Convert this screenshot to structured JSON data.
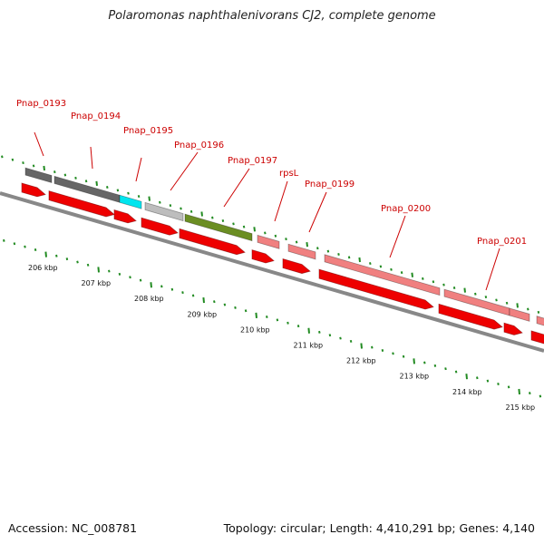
{
  "title": "Polaromonas naphthalenivorans CJ2, complete genome",
  "accession": "Accession: NC_008781",
  "topology": "Topology: circular; Length: 4,410,291 bp; Genes: 4,140",
  "colors": {
    "backbone": "#888888",
    "cds": "#ee0000",
    "tick": "#228b22",
    "label": "#cc0000"
  },
  "genes": [
    {
      "id": "g1",
      "label": "Pnap_0193",
      "color": "#666666"
    },
    {
      "id": "g2",
      "label": "Pnap_0194",
      "color": "#666666"
    },
    {
      "id": "g3",
      "label": "Pnap_0195",
      "color": "#00e5ee"
    },
    {
      "id": "g4",
      "label": "Pnap_0196",
      "color": "#bdbdbd"
    },
    {
      "id": "g5",
      "label": "Pnap_0197",
      "color": "#6b8e23"
    },
    {
      "id": "g6",
      "label": "rpsL",
      "color": "#f08080"
    },
    {
      "id": "g7",
      "label": "Pnap_0199",
      "color": "#f08080"
    },
    {
      "id": "g8",
      "label": "Pnap_0200",
      "color": "#f08080"
    },
    {
      "id": "g9",
      "label": "Pnap_0201",
      "color": "#f08080"
    },
    {
      "id": "g10",
      "label": "",
      "color": "#f08080"
    },
    {
      "id": "g11",
      "label": "",
      "color": "#f08080"
    }
  ],
  "kbp_labels": [
    "206 kbp",
    "207 kbp",
    "208 kbp",
    "209 kbp",
    "210 kbp",
    "211 kbp",
    "212 kbp",
    "213 kbp",
    "214 kbp",
    "215 kbp"
  ]
}
